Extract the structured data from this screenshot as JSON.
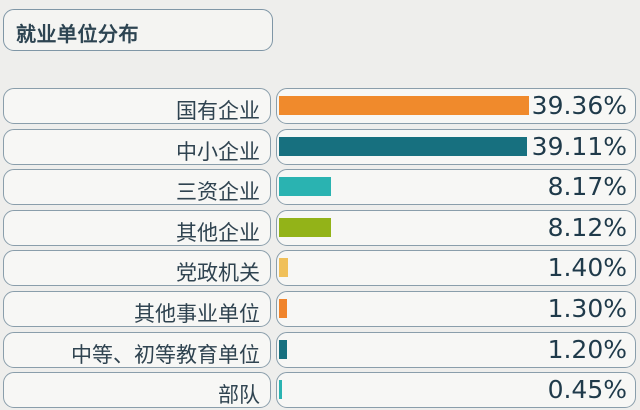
{
  "header": {
    "title": "就业单位分布"
  },
  "chart_data": {
    "type": "bar",
    "orientation": "horizontal",
    "title": "就业单位分布",
    "categories": [
      "国有企业",
      "中小企业",
      "三资企业",
      "其他企业",
      "党政机关",
      "其他事业单位",
      "中等、初等教育单位",
      "部队"
    ],
    "values": [
      39.36,
      39.11,
      8.17,
      8.12,
      1.4,
      1.3,
      1.2,
      0.45
    ],
    "value_labels": [
      "39.36%",
      "39.11%",
      "8.17%",
      "8.12%",
      "1.40%",
      "1.30%",
      "1.20%",
      "0.45%"
    ],
    "colors": [
      "#f08a2c",
      "#17707f",
      "#2ab3b1",
      "#93b318",
      "#f0c05a",
      "#f0842c",
      "#17707f",
      "#2ab3b1"
    ],
    "unit": "%",
    "xlim": [
      0,
      39.36
    ],
    "grid": false,
    "legend": "none"
  }
}
